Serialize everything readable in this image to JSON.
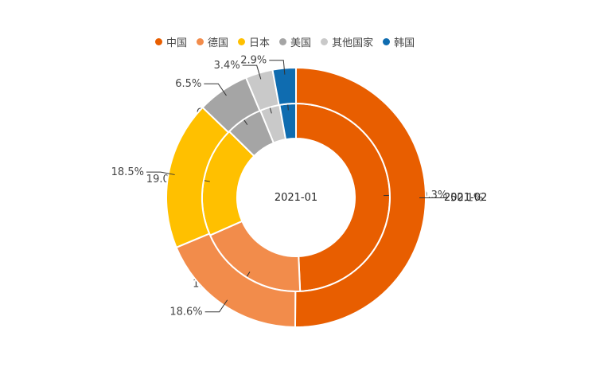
{
  "chart_data": {
    "type": "pie",
    "legend_position": "top-center",
    "categories": [
      "中国",
      "德国",
      "日本",
      "美国",
      "其他国家",
      "韩国"
    ],
    "colors": [
      "#E85E00",
      "#F28C4B",
      "#FFC000",
      "#A5A5A5",
      "#C9C9C9",
      "#0F6CB0"
    ],
    "series": [
      {
        "name": "2021-01",
        "ring": "inner",
        "values": [
          49.3,
          19.1,
          19.0,
          6.4,
          3.4,
          2.8
        ],
        "labels": [
          "49.3%",
          "19.1%",
          "19.0%",
          "6.4%",
          "3.4%",
          "2.8%"
        ]
      },
      {
        "name": "2021-02",
        "ring": "outer",
        "values": [
          50.1,
          18.6,
          18.5,
          6.5,
          3.4,
          2.9
        ],
        "labels": [
          "50.1%",
          "18.6%",
          "18.5%",
          "6.5%",
          "3.4%",
          "2.9%"
        ]
      }
    ]
  }
}
